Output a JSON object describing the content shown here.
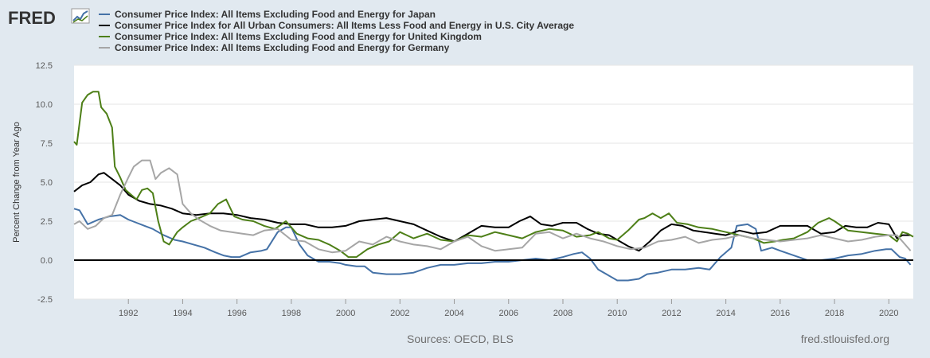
{
  "header": {
    "logo_text": "FRED"
  },
  "footer": {
    "sources": "Sources: OECD, BLS",
    "site": "fred.stlouisfed.org"
  },
  "colors": {
    "background": "#e1e9f0",
    "plot_background": "#ffffff",
    "grid": "#e6e6e6",
    "zero_line": "#000000"
  },
  "chart_data": {
    "type": "line",
    "ylabel": "Percent Change from Year Ago",
    "ylim": [
      -2.5,
      12.5
    ],
    "xlim": [
      1990.0,
      2020.9
    ],
    "yticks": [
      "12.5",
      "10.0",
      "7.5",
      "5.0",
      "2.5",
      "0.0",
      "-2.5"
    ],
    "xticks": [
      "1992",
      "1994",
      "1996",
      "1998",
      "2000",
      "2002",
      "2004",
      "2006",
      "2008",
      "2010",
      "2012",
      "2014",
      "2016",
      "2018",
      "2020"
    ],
    "grid": true,
    "legend_position": "top-left",
    "series": [
      {
        "name": "Consumer Price Index: All Items Excluding Food and Energy for Japan",
        "color": "#4572a7",
        "x": [
          1990.0,
          1990.2,
          1990.5,
          1990.9,
          1991.3,
          1991.7,
          1992.0,
          1992.3,
          1992.6,
          1992.9,
          1993.0,
          1993.3,
          1993.7,
          1994.0,
          1994.4,
          1994.8,
          1995.2,
          1995.5,
          1995.8,
          1996.1,
          1996.5,
          1996.9,
          1997.1,
          1997.5,
          1997.8,
          1998.0,
          1998.3,
          1998.6,
          1999.0,
          1999.4,
          1999.8,
          2000.0,
          2000.4,
          2000.7,
          2001.0,
          2001.5,
          2002.0,
          2002.5,
          2003.0,
          2003.5,
          2004.0,
          2004.5,
          2005.0,
          2005.5,
          2006.0,
          2006.5,
          2007.0,
          2007.5,
          2008.0,
          2008.4,
          2008.7,
          2009.0,
          2009.3,
          2009.7,
          2010.0,
          2010.4,
          2010.8,
          2011.1,
          2011.5,
          2012.0,
          2012.5,
          2013.0,
          2013.4,
          2013.8,
          2014.2,
          2014.4,
          2014.8,
          2015.1,
          2015.3,
          2015.7,
          2016.0,
          2016.5,
          2017.0,
          2017.5,
          2018.0,
          2018.5,
          2019.0,
          2019.5,
          2019.9,
          2020.1,
          2020.4,
          2020.6,
          2020.8
        ],
        "values": [
          3.3,
          3.2,
          2.3,
          2.6,
          2.8,
          2.9,
          2.6,
          2.4,
          2.2,
          2.0,
          1.9,
          1.6,
          1.3,
          1.2,
          1.0,
          0.8,
          0.5,
          0.3,
          0.2,
          0.2,
          0.5,
          0.6,
          0.7,
          1.8,
          2.1,
          2.1,
          1.0,
          0.3,
          -0.1,
          -0.1,
          -0.2,
          -0.3,
          -0.4,
          -0.4,
          -0.8,
          -0.9,
          -0.9,
          -0.8,
          -0.5,
          -0.3,
          -0.3,
          -0.2,
          -0.2,
          -0.1,
          -0.1,
          0.0,
          0.1,
          0.0,
          0.2,
          0.4,
          0.5,
          0.1,
          -0.6,
          -1.0,
          -1.3,
          -1.3,
          -1.2,
          -0.9,
          -0.8,
          -0.6,
          -0.6,
          -0.5,
          -0.6,
          0.2,
          0.8,
          2.2,
          2.3,
          2.0,
          0.6,
          0.8,
          0.6,
          0.3,
          0.0,
          0.0,
          0.1,
          0.3,
          0.4,
          0.6,
          0.7,
          0.7,
          0.2,
          0.1,
          -0.3
        ]
      },
      {
        "name": "Consumer Price Index for All Urban Consumers: All Items Less Food and Energy in U.S. City Average",
        "color": "#000000",
        "x": [
          1990.0,
          1990.3,
          1990.6,
          1990.9,
          1991.1,
          1991.4,
          1991.7,
          1992.0,
          1992.4,
          1992.8,
          1993.2,
          1993.6,
          1994.0,
          1994.5,
          1995.0,
          1995.5,
          1996.0,
          1996.5,
          1997.0,
          1997.5,
          1998.0,
          1998.5,
          1999.0,
          1999.5,
          2000.0,
          2000.5,
          2001.0,
          2001.5,
          2002.0,
          2002.5,
          2003.0,
          2003.5,
          2004.0,
          2004.5,
          2005.0,
          2005.5,
          2006.0,
          2006.4,
          2006.8,
          2007.2,
          2007.6,
          2008.0,
          2008.5,
          2008.9,
          2009.3,
          2009.7,
          2010.0,
          2010.4,
          2010.8,
          2011.2,
          2011.6,
          2012.0,
          2012.4,
          2012.8,
          2013.2,
          2013.6,
          2014.0,
          2014.5,
          2015.0,
          2015.5,
          2016.0,
          2016.5,
          2017.0,
          2017.5,
          2018.0,
          2018.4,
          2018.8,
          2019.2,
          2019.6,
          2020.0,
          2020.3,
          2020.5,
          2020.8
        ],
        "values": [
          4.4,
          4.8,
          5.0,
          5.5,
          5.6,
          5.2,
          4.8,
          4.2,
          3.8,
          3.6,
          3.5,
          3.3,
          3.0,
          2.9,
          3.0,
          3.0,
          2.9,
          2.7,
          2.6,
          2.4,
          2.3,
          2.3,
          2.1,
          2.1,
          2.2,
          2.5,
          2.6,
          2.7,
          2.5,
          2.3,
          1.9,
          1.5,
          1.2,
          1.7,
          2.2,
          2.1,
          2.1,
          2.5,
          2.8,
          2.3,
          2.2,
          2.4,
          2.4,
          2.0,
          1.7,
          1.6,
          1.3,
          0.9,
          0.6,
          1.2,
          1.9,
          2.3,
          2.2,
          1.9,
          1.8,
          1.7,
          1.6,
          1.9,
          1.7,
          1.8,
          2.2,
          2.2,
          2.2,
          1.7,
          1.8,
          2.2,
          2.1,
          2.1,
          2.4,
          2.3,
          1.4,
          1.6,
          1.6
        ]
      },
      {
        "name": "Consumer Price Index: All Items Excluding Food and Energy for United Kingdom",
        "color": "#4d7f17",
        "x": [
          1990.0,
          1990.1,
          1990.3,
          1990.5,
          1990.7,
          1990.9,
          1991.0,
          1991.2,
          1991.4,
          1991.5,
          1991.7,
          1991.9,
          1992.1,
          1992.3,
          1992.5,
          1992.7,
          1992.9,
          1993.1,
          1993.3,
          1993.5,
          1993.8,
          1994.0,
          1994.3,
          1994.6,
          1995.0,
          1995.3,
          1995.6,
          1995.9,
          1996.2,
          1996.6,
          1997.0,
          1997.4,
          1997.8,
          1998.2,
          1998.6,
          1999.0,
          1999.4,
          1999.8,
          2000.1,
          2000.4,
          2000.8,
          2001.2,
          2001.6,
          2002.0,
          2002.5,
          2003.0,
          2003.5,
          2004.0,
          2004.5,
          2005.0,
          2005.5,
          2006.0,
          2006.5,
          2007.0,
          2007.5,
          2008.0,
          2008.5,
          2009.0,
          2009.3,
          2009.7,
          2010.0,
          2010.4,
          2010.8,
          2011.0,
          2011.3,
          2011.6,
          2011.9,
          2012.2,
          2012.6,
          2013.0,
          2013.5,
          2014.0,
          2014.5,
          2015.0,
          2015.4,
          2015.8,
          2016.1,
          2016.5,
          2017.0,
          2017.4,
          2017.8,
          2018.0,
          2018.5,
          2019.0,
          2019.5,
          2020.0,
          2020.3,
          2020.5,
          2020.7,
          2020.9
        ],
        "values": [
          7.6,
          7.4,
          10.1,
          10.6,
          10.8,
          10.8,
          9.8,
          9.4,
          8.5,
          6.0,
          5.3,
          4.5,
          4.2,
          3.9,
          4.5,
          4.6,
          4.3,
          2.5,
          1.2,
          1.0,
          1.8,
          2.1,
          2.5,
          2.7,
          3.0,
          3.6,
          3.9,
          2.8,
          2.6,
          2.5,
          2.2,
          2.0,
          2.5,
          1.7,
          1.4,
          1.3,
          1.0,
          0.6,
          0.2,
          0.2,
          0.7,
          1.0,
          1.2,
          1.8,
          1.4,
          1.7,
          1.3,
          1.2,
          1.6,
          1.5,
          1.8,
          1.6,
          1.4,
          1.8,
          2.0,
          1.9,
          1.5,
          1.6,
          1.8,
          1.4,
          1.3,
          1.9,
          2.6,
          2.7,
          3.0,
          2.7,
          3.0,
          2.4,
          2.3,
          2.1,
          2.0,
          1.8,
          1.6,
          1.4,
          1.1,
          1.2,
          1.3,
          1.4,
          1.8,
          2.4,
          2.7,
          2.5,
          1.9,
          1.8,
          1.7,
          1.6,
          1.2,
          1.8,
          1.7,
          1.5
        ]
      },
      {
        "name": "Consumer Price Index: All Items Excluding Food and Energy for Germany",
        "color": "#a6a6a6",
        "x": [
          1990.0,
          1990.2,
          1990.5,
          1990.8,
          1991.1,
          1991.4,
          1991.7,
          1992.0,
          1992.2,
          1992.5,
          1992.8,
          1993.0,
          1993.2,
          1993.5,
          1993.8,
          1994.0,
          1994.3,
          1994.6,
          1995.0,
          1995.4,
          1995.8,
          1996.2,
          1996.6,
          1997.0,
          1997.5,
          1998.0,
          1998.5,
          1999.0,
          1999.5,
          2000.0,
          2000.5,
          2001.0,
          2001.5,
          2002.0,
          2002.5,
          2003.0,
          2003.5,
          2004.0,
          2004.5,
          2005.0,
          2005.5,
          2006.0,
          2006.5,
          2007.0,
          2007.5,
          2008.0,
          2008.5,
          2009.0,
          2009.5,
          2010.0,
          2010.5,
          2011.0,
          2011.5,
          2012.0,
          2012.5,
          2013.0,
          2013.5,
          2014.0,
          2014.5,
          2015.0,
          2015.5,
          2016.0,
          2016.5,
          2017.0,
          2017.5,
          2018.0,
          2018.5,
          2019.0,
          2019.5,
          2020.0,
          2020.3,
          2020.6,
          2020.8
        ],
        "values": [
          2.3,
          2.5,
          2.0,
          2.2,
          2.7,
          2.9,
          4.2,
          5.3,
          6.0,
          6.4,
          6.4,
          5.2,
          5.6,
          5.9,
          5.5,
          3.6,
          3.0,
          2.6,
          2.2,
          1.9,
          1.8,
          1.7,
          1.6,
          1.9,
          2.0,
          1.3,
          1.2,
          0.7,
          0.5,
          0.6,
          1.2,
          1.0,
          1.5,
          1.2,
          1.0,
          0.9,
          0.7,
          1.2,
          1.5,
          0.9,
          0.6,
          0.7,
          0.8,
          1.7,
          1.8,
          1.4,
          1.7,
          1.4,
          1.2,
          0.9,
          0.7,
          0.8,
          1.2,
          1.3,
          1.5,
          1.1,
          1.3,
          1.4,
          1.6,
          1.4,
          1.3,
          1.2,
          1.3,
          1.4,
          1.6,
          1.4,
          1.2,
          1.3,
          1.5,
          1.6,
          1.6,
          1.0,
          0.6
        ]
      }
    ]
  }
}
